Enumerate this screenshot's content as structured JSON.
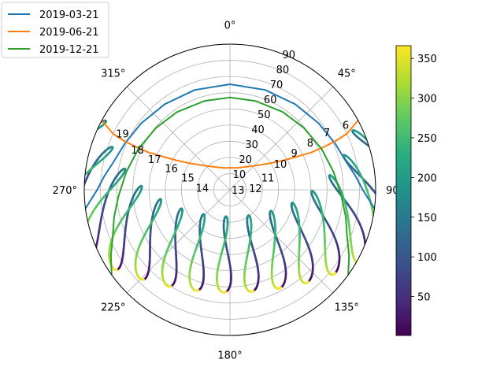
{
  "chart_data": {
    "type": "polar-line",
    "title": "",
    "theta_direction": "clockwise",
    "theta_zero": "north",
    "r_axis": {
      "range": [
        0,
        90
      ],
      "ticks": [
        10,
        20,
        30,
        40,
        50,
        60,
        70,
        80,
        90
      ],
      "tick_labels": [
        "10",
        "20",
        "30",
        "40",
        "50",
        "60",
        "70",
        "80",
        "90"
      ]
    },
    "theta_ticks": [
      0,
      45,
      90,
      135,
      180,
      225,
      270,
      315
    ],
    "theta_tick_labels": [
      "0°",
      "45°",
      "90°",
      "135°",
      "180°",
      "225°",
      "270°",
      "315°"
    ],
    "grid": true,
    "legend": {
      "placement": "top-left",
      "entries": [
        "2019-03-21",
        "2019-06-21",
        "2019-12-21"
      ]
    },
    "series": [
      {
        "name": "2019-03-21",
        "color": "#1f77b4",
        "points": [
          [
            262.6,
            90
          ],
          [
            266.0,
            86
          ],
          [
            270.0,
            82
          ],
          [
            276.3,
            78
          ],
          [
            283.3,
            74
          ],
          [
            293.7,
            71
          ],
          [
            306.9,
            68.5
          ],
          [
            322.7,
            66.5
          ],
          [
            340.6,
            65.4
          ],
          [
            360.0,
            65.2
          ],
          [
            19.4,
            65.4
          ],
          [
            37.3,
            66.5
          ],
          [
            53.1,
            68.5
          ],
          [
            66.3,
            71
          ],
          [
            76.7,
            74
          ],
          [
            83.7,
            78
          ],
          [
            90.0,
            82
          ],
          [
            94.0,
            86
          ],
          [
            97.4,
            90
          ]
        ]
      },
      {
        "name": "2019-06-21",
        "color": "#ff7f0e",
        "points": [
          [
            298.4,
            90
          ],
          [
            295.6,
            80
          ],
          [
            294.8,
            72
          ],
          [
            294.5,
            64
          ],
          [
            294.7,
            55
          ],
          [
            296.4,
            46
          ],
          [
            299.1,
            37
          ],
          [
            304.1,
            29
          ],
          [
            313.0,
            22
          ],
          [
            326.0,
            17
          ],
          [
            345.0,
            14
          ],
          [
            360.0,
            13.6
          ],
          [
            15.0,
            14
          ],
          [
            34.0,
            17
          ],
          [
            47.0,
            22
          ],
          [
            55.9,
            29
          ],
          [
            60.9,
            37
          ],
          [
            63.6,
            46
          ],
          [
            65.3,
            55
          ],
          [
            65.5,
            64
          ],
          [
            65.2,
            72
          ],
          [
            64.4,
            80
          ],
          [
            61.6,
            90
          ]
        ]
      },
      {
        "name": "2019-12-21",
        "color": "#2ca02c",
        "points": [
          [
            234.3,
            90
          ],
          [
            241.1,
            84
          ],
          [
            248.1,
            78
          ],
          [
            256.8,
            73.5
          ],
          [
            266.6,
            69
          ],
          [
            279.7,
            65
          ],
          [
            294.0,
            62
          ],
          [
            310.0,
            59.6
          ],
          [
            325.8,
            58.1
          ],
          [
            344.0,
            57.1
          ],
          [
            360.0,
            57.0
          ],
          [
            16.0,
            57.1
          ],
          [
            34.2,
            58.1
          ],
          [
            50.0,
            59.6
          ],
          [
            66.0,
            62
          ],
          [
            80.3,
            65
          ],
          [
            93.4,
            69
          ],
          [
            103.2,
            73.5
          ],
          [
            111.9,
            78
          ],
          [
            118.9,
            84
          ],
          [
            125.7,
            90
          ]
        ]
      }
    ],
    "hour_labels": [
      {
        "label": "6",
        "theta": 60.7,
        "r": 82
      },
      {
        "label": "7",
        "theta": 59.3,
        "r": 69.6
      },
      {
        "label": "8",
        "theta": 59.5,
        "r": 57.5
      },
      {
        "label": "9",
        "theta": 60.1,
        "r": 45.8
      },
      {
        "label": "10",
        "theta": 62.9,
        "r": 35
      },
      {
        "label": "11",
        "theta": 71.9,
        "r": 24.6
      },
      {
        "label": "12",
        "theta": 86.8,
        "r": 15.8
      },
      {
        "label": "13",
        "theta": 90,
        "r": 5
      },
      {
        "label": "14",
        "theta": 273.9,
        "r": 17.1
      },
      {
        "label": "15",
        "theta": 286.2,
        "r": 27.1
      },
      {
        "label": "16",
        "theta": 290.3,
        "r": 38.6
      },
      {
        "label": "17",
        "theta": 292.1,
        "r": 50.3
      },
      {
        "label": "18",
        "theta": 293.5,
        "r": 62.3
      },
      {
        "label": "19",
        "theta": 297.7,
        "r": 75
      }
    ],
    "colorbar": {
      "range": [
        1,
        366
      ],
      "ticks": [
        50,
        100,
        150,
        200,
        250,
        300,
        350
      ],
      "tick_labels": [
        "50",
        "100",
        "150",
        "200",
        "250",
        "300",
        "350"
      ],
      "colormap": "viridis"
    }
  }
}
